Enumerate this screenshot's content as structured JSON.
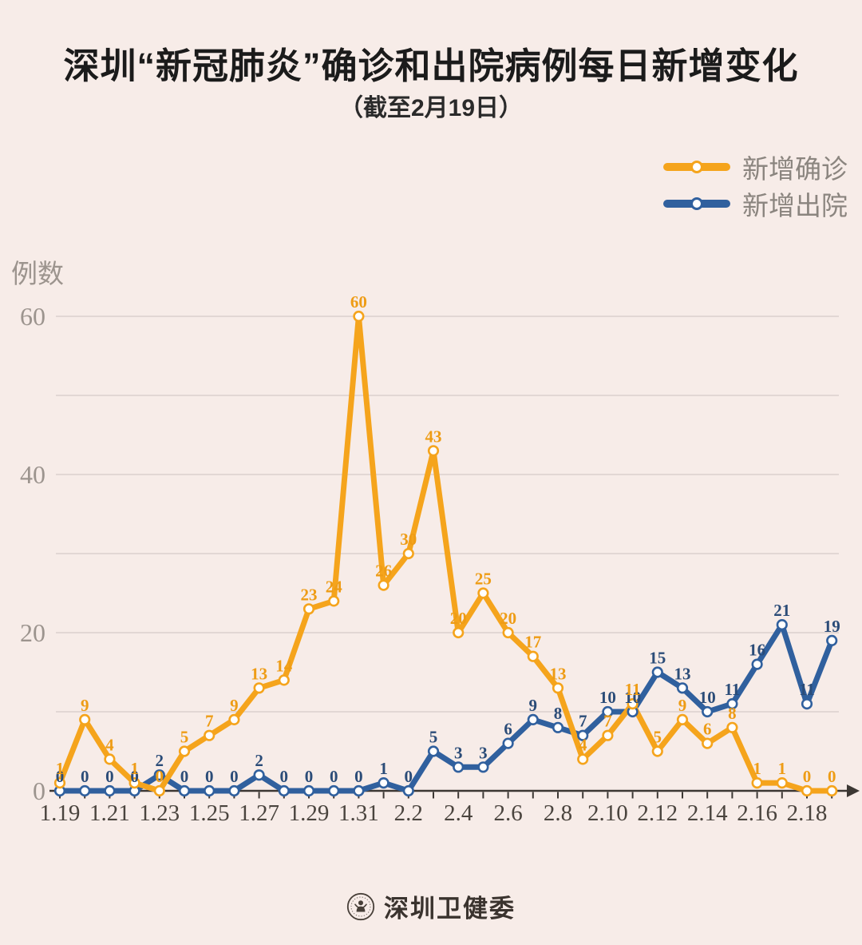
{
  "chart_data": {
    "type": "line",
    "title": "深圳“新冠肺炎”确诊和出院病例每日新增变化",
    "subtitle": "（截至2月19日）",
    "ylabel": "例数",
    "ylim": [
      0,
      60
    ],
    "yticks_labeled": [
      0,
      20,
      40,
      60
    ],
    "gridlines_every": 10,
    "grid": true,
    "xtick_label_every": 2,
    "legend_position": "top-right",
    "categories": [
      "1.19",
      "1.20",
      "1.21",
      "1.22",
      "1.23",
      "1.24",
      "1.25",
      "1.26",
      "1.27",
      "1.28",
      "1.29",
      "1.30",
      "1.31",
      "2.1",
      "2.2",
      "2.3",
      "2.4",
      "2.5",
      "2.6",
      "2.7",
      "2.8",
      "2.9",
      "2.10",
      "2.11",
      "2.12",
      "2.13",
      "2.14",
      "2.15",
      "2.16",
      "2.17",
      "2.18",
      "2.19"
    ],
    "series": [
      {
        "id": "confirmed",
        "name": "新增确诊",
        "color": "#F5A41C",
        "label_color": "#EE9C15",
        "values": [
          1,
          9,
          4,
          1,
          0,
          5,
          7,
          9,
          13,
          14,
          23,
          24,
          60,
          26,
          30,
          43,
          20,
          25,
          20,
          17,
          13,
          4,
          7,
          11,
          5,
          9,
          6,
          8,
          1,
          1,
          0,
          0
        ]
      },
      {
        "id": "discharged",
        "name": "新增出院",
        "color": "#30609E",
        "label_color": "#2B4C78",
        "values": [
          0,
          0,
          0,
          0,
          2,
          0,
          0,
          0,
          2,
          0,
          0,
          0,
          0,
          1,
          0,
          5,
          3,
          3,
          6,
          9,
          8,
          7,
          10,
          10,
          15,
          13,
          10,
          11,
          16,
          21,
          11,
          19
        ]
      }
    ]
  },
  "footer": {
    "source_name": "深圳卫健委",
    "logo_icon": "szhc-circular-emblem-icon"
  },
  "colors": {
    "background": "#F7ECE8",
    "title_text": "#1B1B1B",
    "grid": "#DFD4D2",
    "axis": "#3C3733",
    "x_label_text": "#4A443E",
    "y_label_text": "#9C948E",
    "legend_text": "#8B857F",
    "footer_text": "#3A332E",
    "marker_fill": "#FFFFFF"
  }
}
